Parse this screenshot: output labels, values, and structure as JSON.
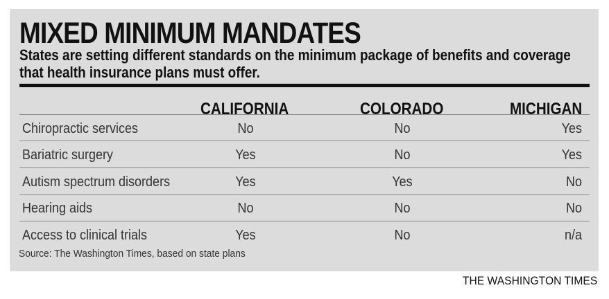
{
  "title": "MIXED MINIMUM MANDATES",
  "subtitle": "States are setting different standards on the minimum package of benefits and coverage that health insurance plans must offer.",
  "source": "Source: The Washington Times, based on state plans",
  "credit": "THE WASHINGTON TIMES",
  "colors": {
    "panel": "#dcdcdc",
    "rule": "#111111",
    "row_line": "#8a8a8a"
  },
  "chart_data": {
    "type": "table",
    "columns": [
      "CALIFORNIA",
      "COLORADO",
      "MICHIGAN"
    ],
    "rows": [
      {
        "label": "Chiropractic services",
        "values": [
          "No",
          "No",
          "Yes"
        ]
      },
      {
        "label": "Bariatric surgery",
        "values": [
          "Yes",
          "No",
          "Yes"
        ]
      },
      {
        "label": "Autism spectrum disorders",
        "values": [
          "Yes",
          "Yes",
          "No"
        ]
      },
      {
        "label": "Hearing aids",
        "values": [
          "No",
          "No",
          "No"
        ]
      },
      {
        "label": "Access to clinical trials",
        "values": [
          "Yes",
          "No",
          "n/a"
        ]
      }
    ]
  }
}
